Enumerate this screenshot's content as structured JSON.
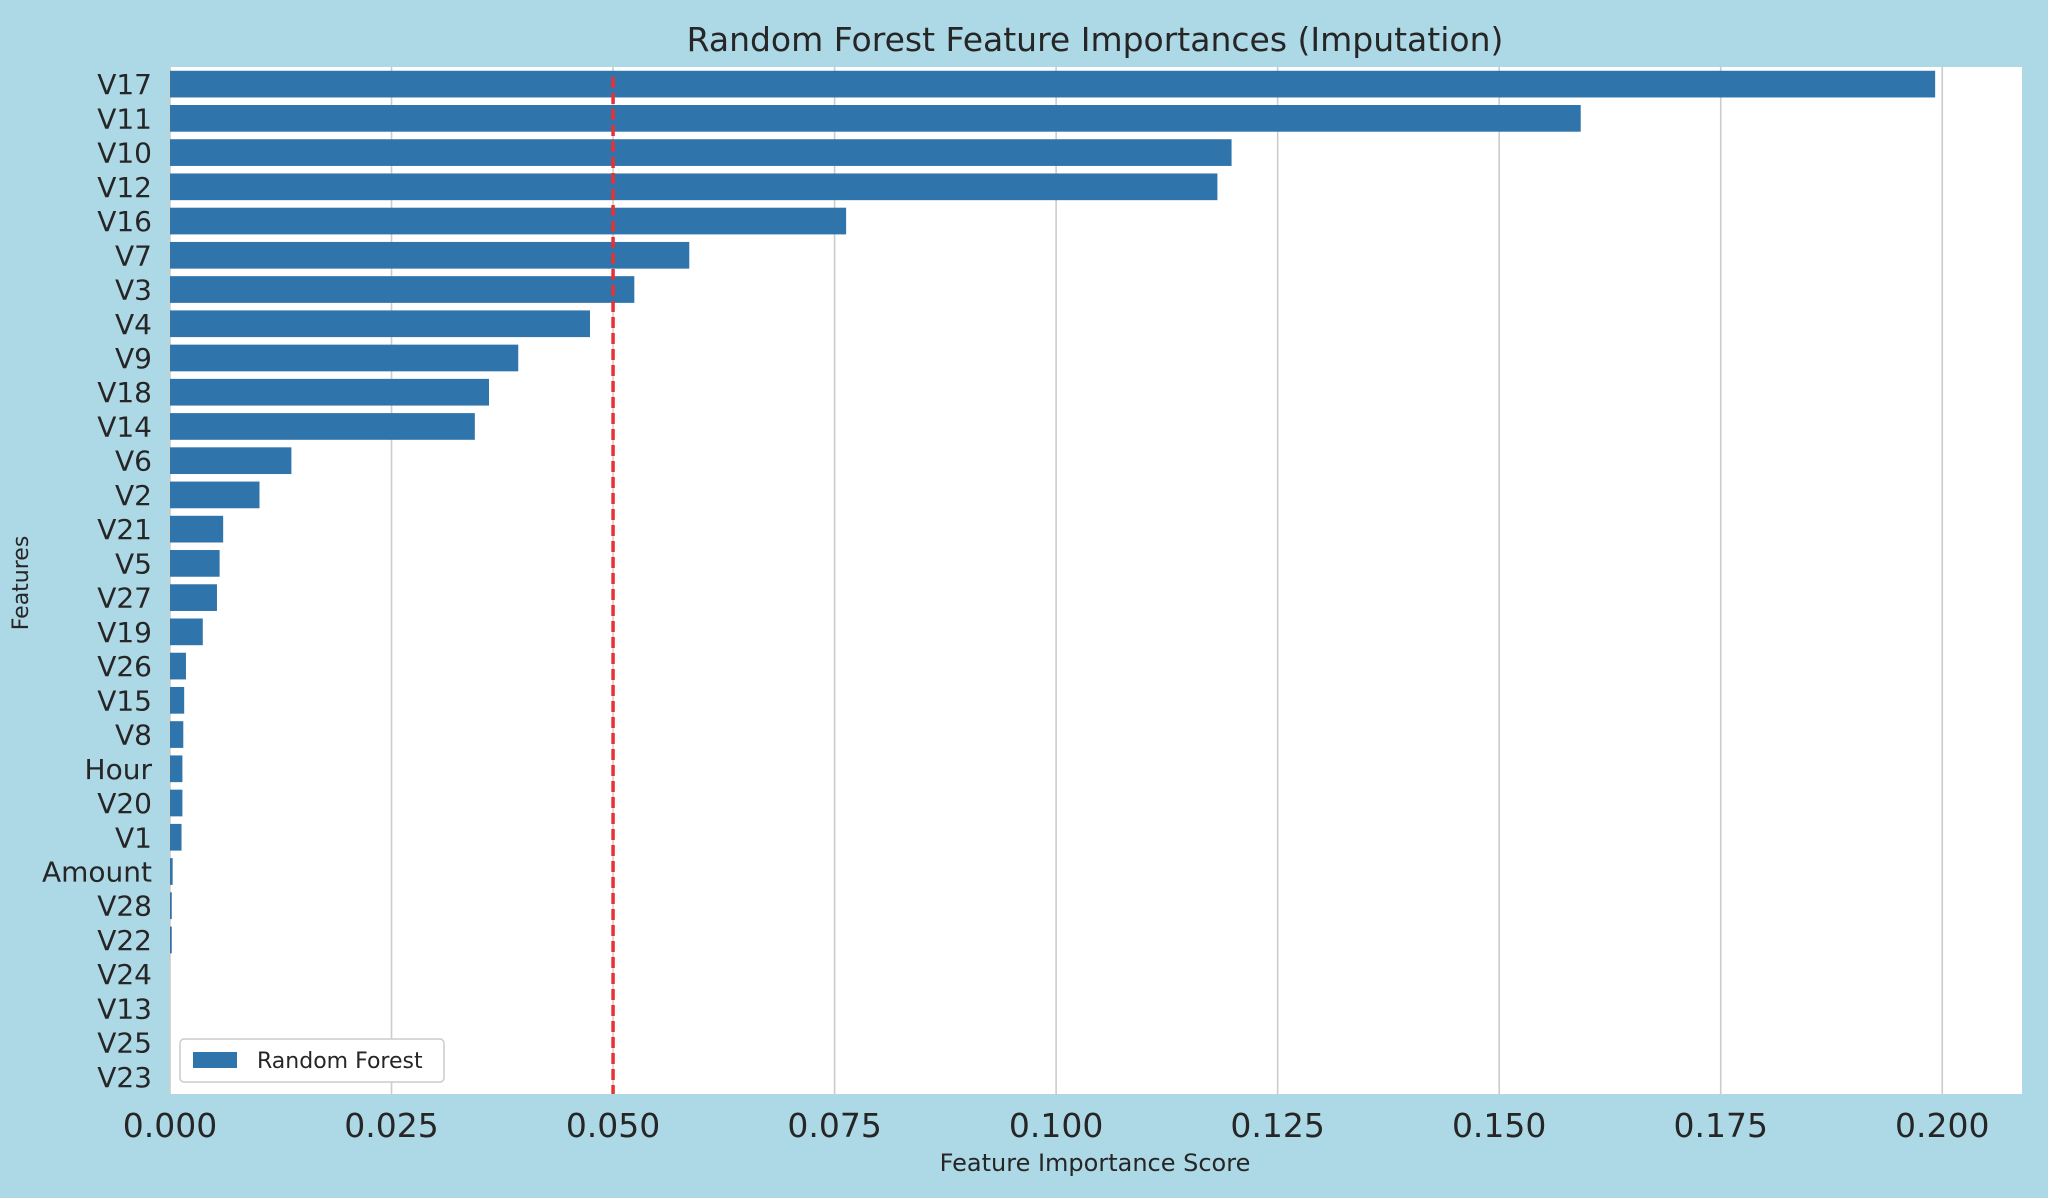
{
  "chart_data": {
    "type": "bar",
    "orientation": "horizontal",
    "title": "Random Forest Feature Importances (Imputation)",
    "xlabel": "Feature Importance Score",
    "ylabel": "Features",
    "xlim": [
      0,
      0.209
    ],
    "xticks": [
      0.0,
      0.025,
      0.05,
      0.075,
      0.1,
      0.125,
      0.15,
      0.175,
      0.2
    ],
    "xtick_labels": [
      "0.000",
      "0.025",
      "0.050",
      "0.075",
      "0.100",
      "0.125",
      "0.150",
      "0.175",
      "0.200"
    ],
    "grid": "x-axis vertical lines",
    "legend_position": "lower-left",
    "categories": [
      "V17",
      "V11",
      "V10",
      "V12",
      "V16",
      "V7",
      "V3",
      "V4",
      "V9",
      "V18",
      "V14",
      "V6",
      "V2",
      "V21",
      "V5",
      "V27",
      "V19",
      "V26",
      "V15",
      "V8",
      "Hour",
      "V20",
      "V1",
      "Amount",
      "V28",
      "V22",
      "V24",
      "V13",
      "V25",
      "V23"
    ],
    "series": [
      {
        "name": "Random Forest",
        "values": [
          0.1992,
          0.1592,
          0.1198,
          0.1182,
          0.0763,
          0.0586,
          0.0524,
          0.0474,
          0.0393,
          0.036,
          0.0344,
          0.0137,
          0.0101,
          0.006,
          0.0056,
          0.0053,
          0.0037,
          0.0018,
          0.0016,
          0.0015,
          0.0014,
          0.0014,
          0.0013,
          0.0003,
          0.0002,
          0.0002,
          0.0,
          0.0,
          0.0,
          0.0
        ]
      }
    ],
    "reference_line": {
      "value": 0.05,
      "style": "dashed"
    },
    "colors": {
      "background": "#add8e6",
      "plot_area": "#ffffff",
      "bar": "#2f74aa",
      "reference_line": "#e63232",
      "grid": "#cccccc",
      "text": "#262626"
    }
  }
}
